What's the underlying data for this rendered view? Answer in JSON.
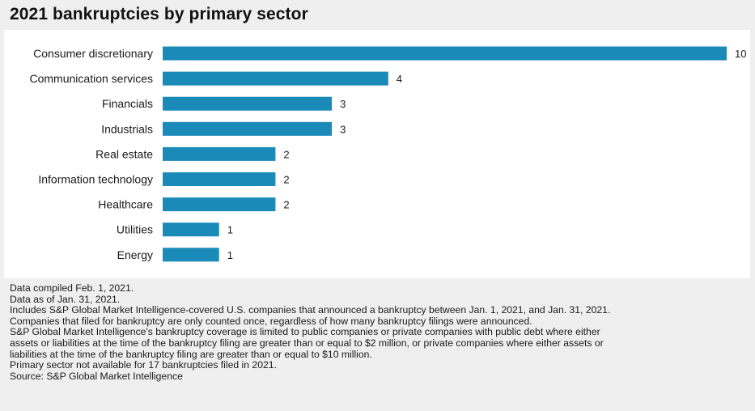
{
  "title": "2021 bankruptcies by primary sector",
  "chart_data": {
    "type": "bar",
    "orientation": "horizontal",
    "title": "2021 bankruptcies by primary sector",
    "categories": [
      "Consumer discretionary",
      "Communication services",
      "Financials",
      "Industrials",
      "Real estate",
      "Information technology",
      "Healthcare",
      "Utilities",
      "Energy"
    ],
    "values": [
      10,
      4,
      3,
      3,
      2,
      2,
      2,
      1,
      1
    ],
    "xlabel": "",
    "ylabel": "",
    "xlim": [
      0,
      10
    ],
    "grid": false,
    "bar_color": "#1a8ab8"
  },
  "notes": [
    "Data compiled Feb. 1, 2021.",
    "Data as of Jan. 31, 2021.",
    "Includes S&P Global Market Intelligence-covered U.S. companies that announced a bankruptcy between Jan. 1, 2021, and Jan. 31, 2021.",
    "Companies that filed for bankruptcy are only counted once, regardless of how many bankruptcy filings were announced.",
    "S&P Global Market Intelligence's bankruptcy coverage is limited to public companies or private companies with public debt where either",
    "assets or liabilities at the time of the bankruptcy filing are greater than or equal to $2 million, or private companies where either assets or",
    "liabilities at the time of the bankruptcy filing are greater than or equal to $10 million.",
    "Primary sector not available for 17 bankruptcies filed in 2021.",
    "Source: S&P Global Market Intelligence"
  ]
}
